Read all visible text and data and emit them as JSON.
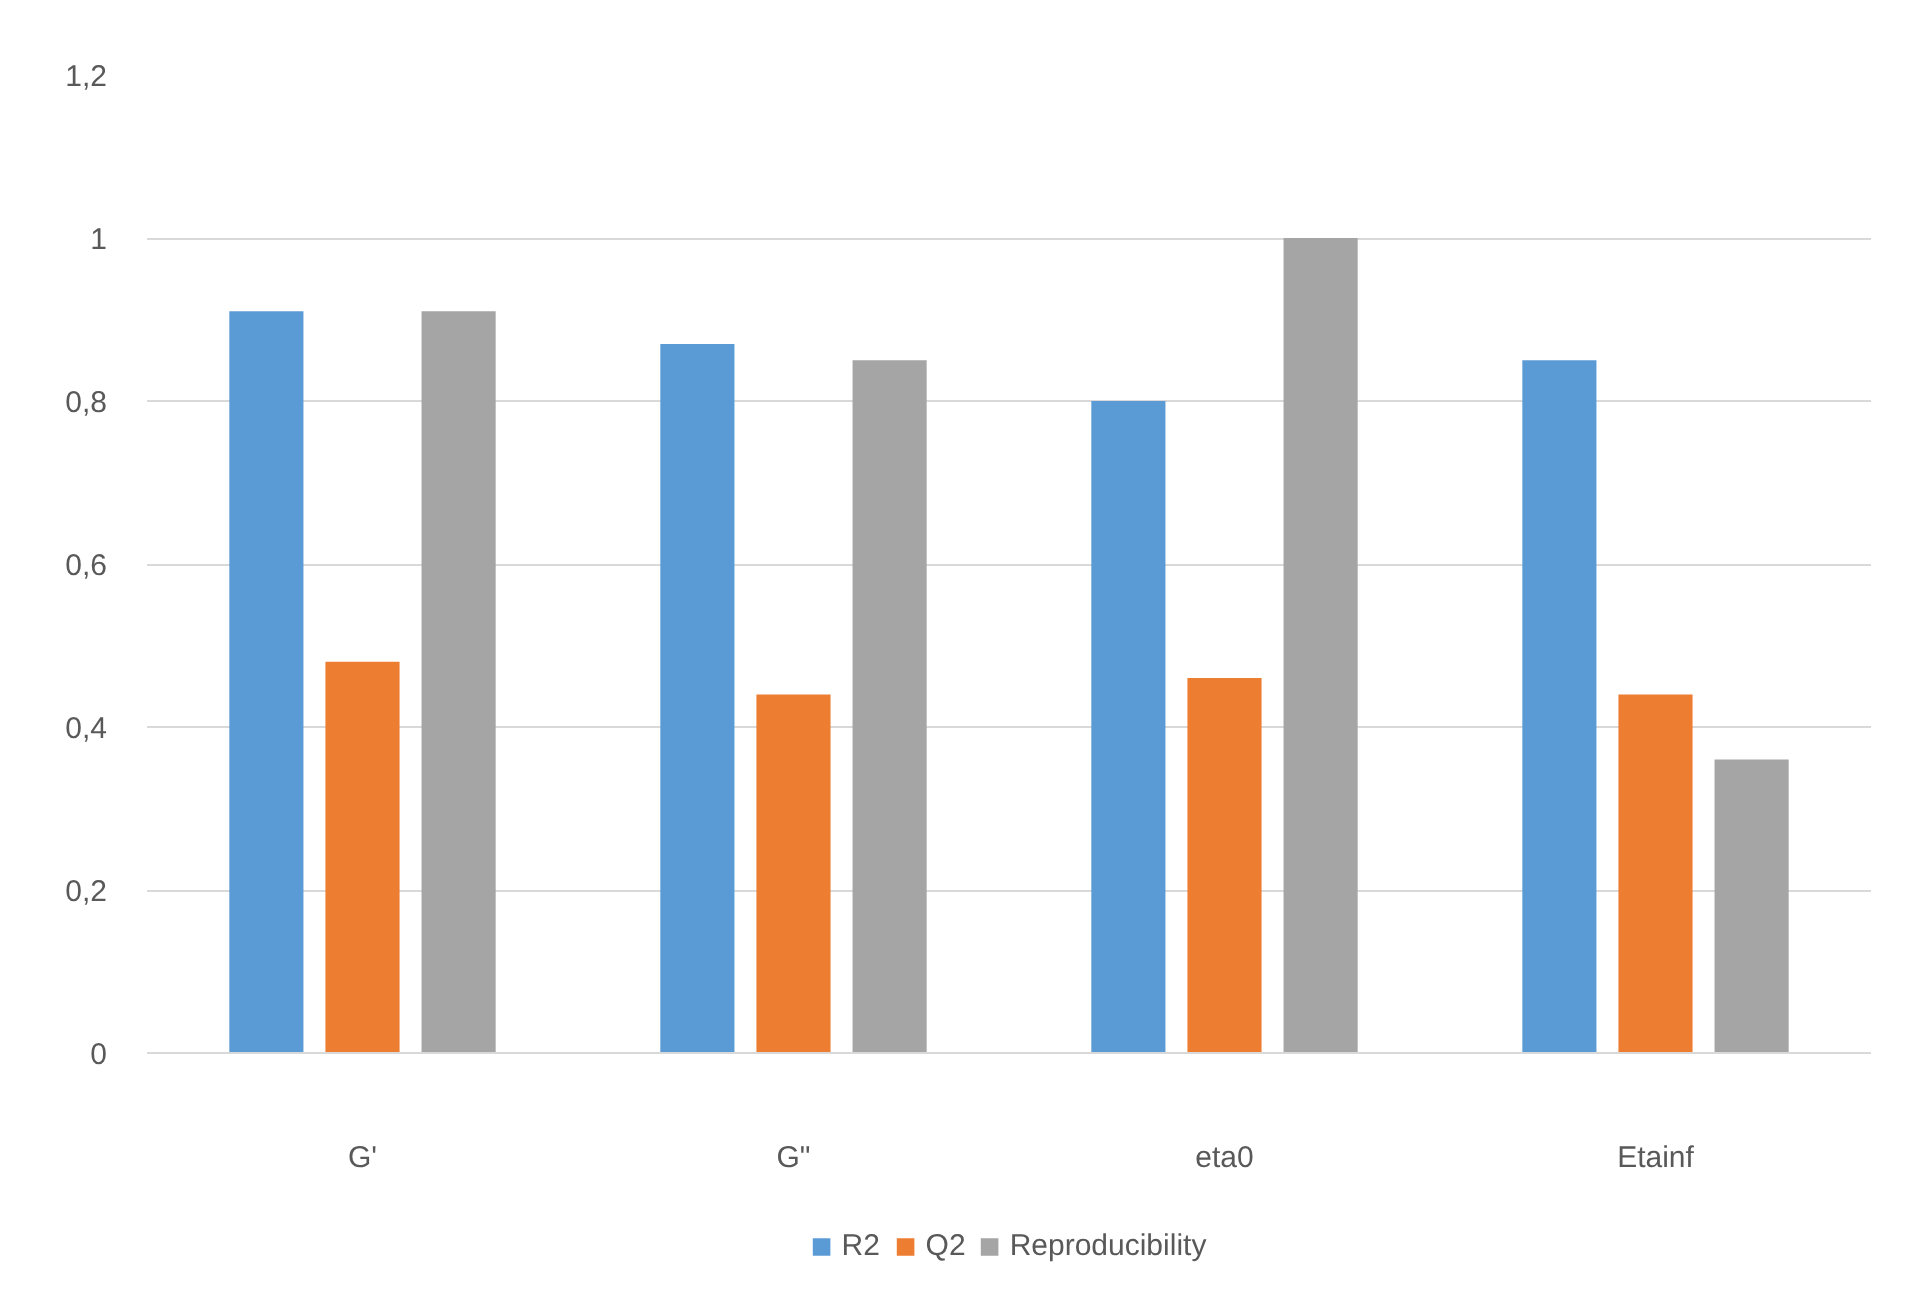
{
  "chart_data": {
    "type": "bar",
    "categories": [
      "G'",
      "G\"",
      "eta0",
      "Etainf"
    ],
    "series": [
      {
        "name": "R2",
        "color": "#5b9bd5",
        "values": [
          0.91,
          0.87,
          0.8,
          0.85
        ]
      },
      {
        "name": "Q2",
        "color": "#ed7d31",
        "values": [
          0.48,
          0.44,
          0.46,
          0.44
        ]
      },
      {
        "name": "Reproducibility",
        "color": "#a5a5a5",
        "values": [
          0.91,
          0.85,
          1.0,
          0.36
        ]
      }
    ],
    "ylim": [
      0,
      1.2
    ],
    "yticks": [
      0,
      {
        "value": 0.2,
        "label": "0,2"
      },
      {
        "value": 0.4,
        "label": "0,4"
      },
      {
        "value": 0.6,
        "label": "0,6"
      },
      {
        "value": 0.8,
        "label": "0,8"
      },
      1,
      {
        "value": 1.2,
        "label": "1,2"
      }
    ],
    "grid": "y",
    "legend": "bottom"
  }
}
